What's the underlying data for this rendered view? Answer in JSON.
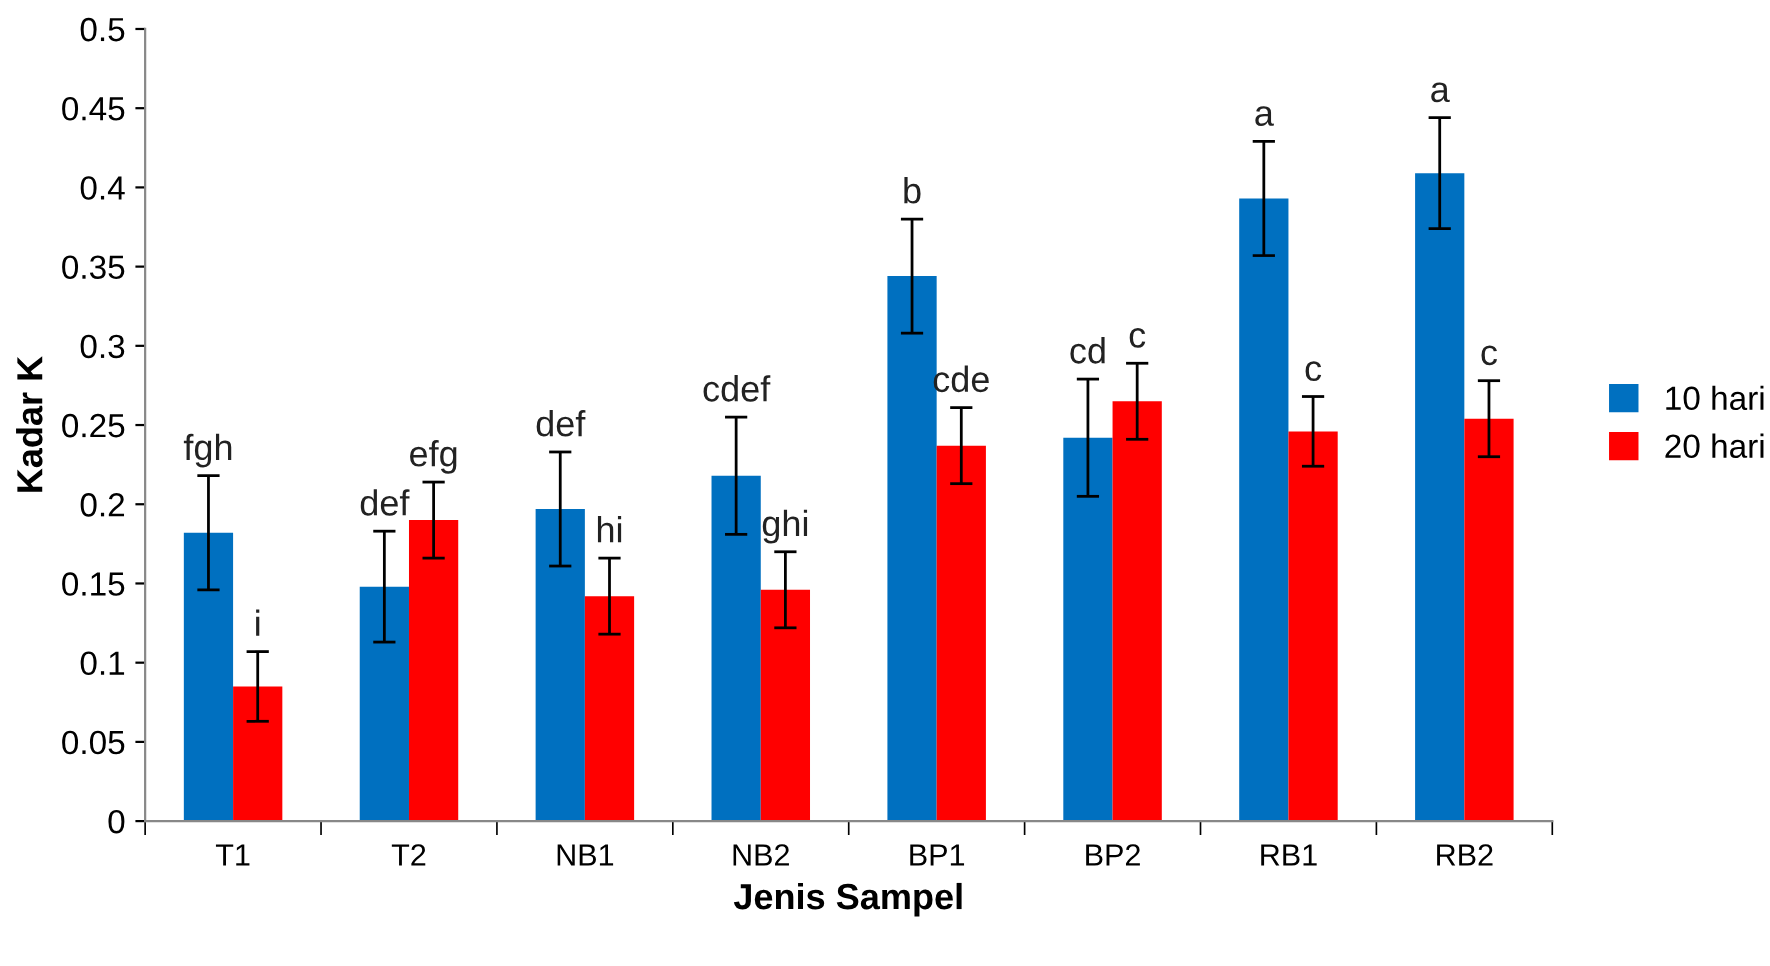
{
  "chart_data": {
    "type": "bar",
    "xlabel": "Jenis Sampel",
    "ylabel": "Kadar K",
    "categories": [
      "T1",
      "T2",
      "NB1",
      "NB2",
      "BP1",
      "BP2",
      "RB1",
      "RB2"
    ],
    "series": [
      {
        "name": "10 hari",
        "color": "#0070c0",
        "values": [
          0.182,
          0.148,
          0.197,
          0.218,
          0.344,
          0.242,
          0.393,
          0.409
        ],
        "errors": [
          0.036,
          0.035,
          0.036,
          0.037,
          0.036,
          0.037,
          0.036,
          0.035
        ],
        "value_labels": [
          "fgh",
          "def",
          "def",
          "cdef",
          "b",
          "cd",
          "a",
          "a"
        ]
      },
      {
        "name": "20 hari",
        "color": "#ff0000",
        "values": [
          0.085,
          0.19,
          0.142,
          0.146,
          0.237,
          0.265,
          0.246,
          0.254
        ],
        "errors": [
          0.022,
          0.024,
          0.024,
          0.024,
          0.024,
          0.024,
          0.022,
          0.024
        ],
        "value_labels": [
          "i",
          "efg",
          "hi",
          "ghi",
          "cde",
          "c",
          "c",
          "c"
        ]
      }
    ],
    "ylim": [
      0,
      0.5
    ],
    "yticks": [
      0,
      0.05,
      0.1,
      0.15,
      0.2,
      0.25,
      0.3,
      0.35,
      0.4,
      0.45,
      0.5
    ],
    "grid": false,
    "legend": "right"
  }
}
